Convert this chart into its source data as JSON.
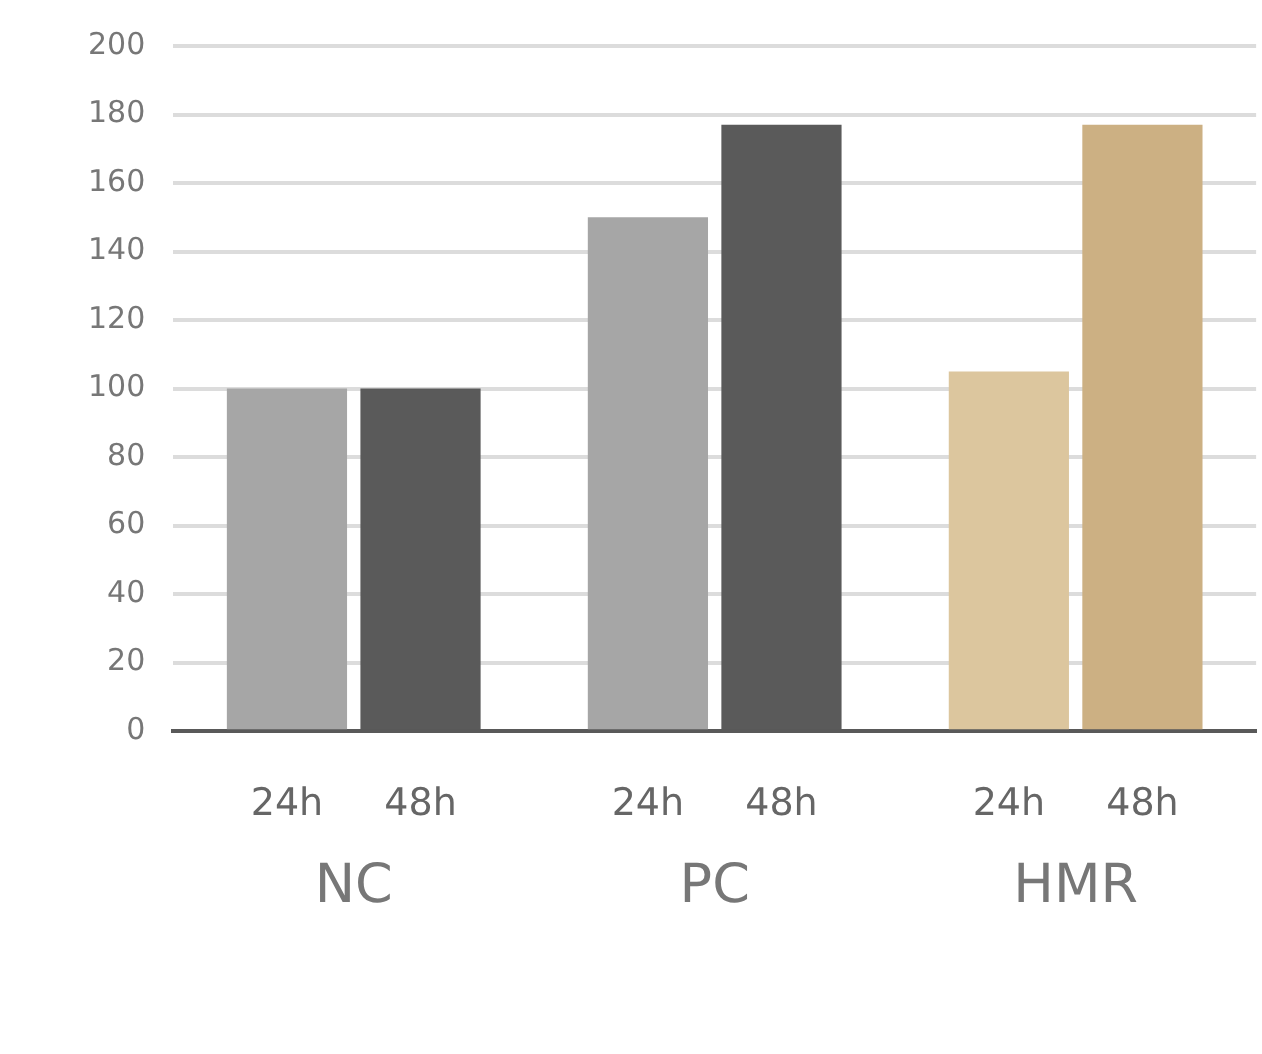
{
  "chart_data": {
    "type": "bar",
    "categories": [
      "NC",
      "PC",
      "HMR"
    ],
    "series": [
      {
        "name": "24h",
        "colors": [
          "#a6a6a6",
          "#a6a6a6",
          "#dcc69e"
        ],
        "values": [
          100,
          150,
          105
        ]
      },
      {
        "name": "48h",
        "colors": [
          "#5a5a5a",
          "#5a5a5a",
          "#ccb083"
        ],
        "values": [
          100,
          177,
          177
        ]
      }
    ],
    "ylim": [
      0,
      200
    ],
    "yticks": [
      0,
      20,
      40,
      60,
      80,
      100,
      120,
      140,
      160,
      180,
      200
    ],
    "grid": "y",
    "legend": false
  }
}
